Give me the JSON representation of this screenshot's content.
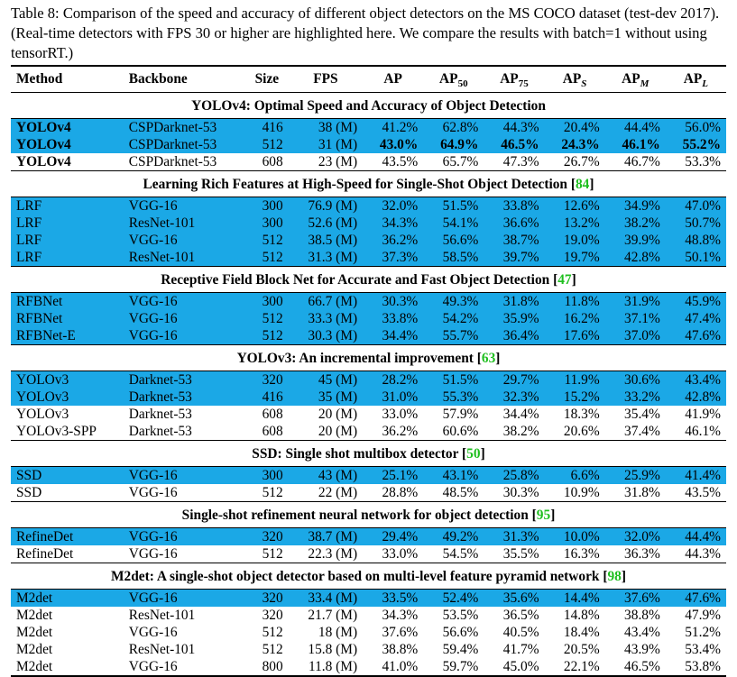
{
  "caption": "Table 8: Comparison of the speed and accuracy of different object detectors on the MS COCO dataset (test-dev 2017). (Real-time detectors with FPS 30 or higher are highlighted here. We compare the results with batch=1 without using tensorRT.)",
  "headers": {
    "method": "Method",
    "backbone": "Backbone",
    "size": "Size",
    "fps": "FPS",
    "ap": "AP",
    "ap50_base": "AP",
    "ap50_sub": "50",
    "ap75_base": "AP",
    "ap75_sub": "75",
    "aps_base": "AP",
    "aps_sub": "S",
    "apm_base": "AP",
    "apm_sub": "M",
    "apl_base": "AP",
    "apl_sub": "L"
  },
  "groups": [
    {
      "title": "YOLOv4: Optimal Speed and Accuracy of Object Detection",
      "ref": "",
      "rows": [
        {
          "method": "YOLOv4",
          "backbone": "CSPDarknet-53",
          "size": "416",
          "fps": "38 (M)",
          "ap": "41.2%",
          "ap50": "62.8%",
          "ap75": "44.3%",
          "aps": "20.4%",
          "apm": "44.4%",
          "apl": "56.0%",
          "hl": true,
          "bold_method": true,
          "bold": []
        },
        {
          "method": "YOLOv4",
          "backbone": "CSPDarknet-53",
          "size": "512",
          "fps": "31 (M)",
          "ap": "43.0%",
          "ap50": "64.9%",
          "ap75": "46.5%",
          "aps": "24.3%",
          "apm": "46.1%",
          "apl": "55.2%",
          "hl": true,
          "bold_method": true,
          "bold": [
            "ap",
            "ap50",
            "ap75",
            "aps",
            "apm",
            "apl"
          ]
        },
        {
          "method": "YOLOv4",
          "backbone": "CSPDarknet-53",
          "size": "608",
          "fps": "23 (M)",
          "ap": "43.5%",
          "ap50": "65.7%",
          "ap75": "47.3%",
          "aps": "26.7%",
          "apm": "46.7%",
          "apl": "53.3%",
          "hl": false,
          "bold_method": true,
          "bold": []
        }
      ]
    },
    {
      "title": "Learning Rich Features at High-Speed for Single-Shot Object Detection",
      "ref": "84",
      "rows": [
        {
          "method": "LRF",
          "backbone": "VGG-16",
          "size": "300",
          "fps": "76.9 (M)",
          "ap": "32.0%",
          "ap50": "51.5%",
          "ap75": "33.8%",
          "aps": "12.6%",
          "apm": "34.9%",
          "apl": "47.0%",
          "hl": true,
          "bold_method": false,
          "bold": []
        },
        {
          "method": "LRF",
          "backbone": "ResNet-101",
          "size": "300",
          "fps": "52.6 (M)",
          "ap": "34.3%",
          "ap50": "54.1%",
          "ap75": "36.6%",
          "aps": "13.2%",
          "apm": "38.2%",
          "apl": "50.7%",
          "hl": true,
          "bold_method": false,
          "bold": []
        },
        {
          "method": "LRF",
          "backbone": "VGG-16",
          "size": "512",
          "fps": "38.5 (M)",
          "ap": "36.2%",
          "ap50": "56.6%",
          "ap75": "38.7%",
          "aps": "19.0%",
          "apm": "39.9%",
          "apl": "48.8%",
          "hl": true,
          "bold_method": false,
          "bold": []
        },
        {
          "method": "LRF",
          "backbone": "ResNet-101",
          "size": "512",
          "fps": "31.3 (M)",
          "ap": "37.3%",
          "ap50": "58.5%",
          "ap75": "39.7%",
          "aps": "19.7%",
          "apm": "42.8%",
          "apl": "50.1%",
          "hl": true,
          "bold_method": false,
          "bold": []
        }
      ]
    },
    {
      "title": "Receptive Field Block Net for Accurate and Fast Object Detection",
      "ref": "47",
      "rows": [
        {
          "method": "RFBNet",
          "backbone": "VGG-16",
          "size": "300",
          "fps": "66.7 (M)",
          "ap": "30.3%",
          "ap50": "49.3%",
          "ap75": "31.8%",
          "aps": "11.8%",
          "apm": "31.9%",
          "apl": "45.9%",
          "hl": true,
          "bold_method": false,
          "bold": []
        },
        {
          "method": "RFBNet",
          "backbone": "VGG-16",
          "size": "512",
          "fps": "33.3 (M)",
          "ap": "33.8%",
          "ap50": "54.2%",
          "ap75": "35.9%",
          "aps": "16.2%",
          "apm": "37.1%",
          "apl": "47.4%",
          "hl": true,
          "bold_method": false,
          "bold": []
        },
        {
          "method": "RFBNet-E",
          "backbone": "VGG-16",
          "size": "512",
          "fps": "30.3 (M)",
          "ap": "34.4%",
          "ap50": "55.7%",
          "ap75": "36.4%",
          "aps": "17.6%",
          "apm": "37.0%",
          "apl": "47.6%",
          "hl": true,
          "bold_method": false,
          "bold": []
        }
      ]
    },
    {
      "title": "YOLOv3: An incremental improvement",
      "ref": "63",
      "rows": [
        {
          "method": "YOLOv3",
          "backbone": "Darknet-53",
          "size": "320",
          "fps": "45 (M)",
          "ap": "28.2%",
          "ap50": "51.5%",
          "ap75": "29.7%",
          "aps": "11.9%",
          "apm": "30.6%",
          "apl": "43.4%",
          "hl": true,
          "bold_method": false,
          "bold": []
        },
        {
          "method": "YOLOv3",
          "backbone": "Darknet-53",
          "size": "416",
          "fps": "35 (M)",
          "ap": "31.0%",
          "ap50": "55.3%",
          "ap75": "32.3%",
          "aps": "15.2%",
          "apm": "33.2%",
          "apl": "42.8%",
          "hl": true,
          "bold_method": false,
          "bold": []
        },
        {
          "method": "YOLOv3",
          "backbone": "Darknet-53",
          "size": "608",
          "fps": "20 (M)",
          "ap": "33.0%",
          "ap50": "57.9%",
          "ap75": "34.4%",
          "aps": "18.3%",
          "apm": "35.4%",
          "apl": "41.9%",
          "hl": false,
          "bold_method": false,
          "bold": []
        },
        {
          "method": "YOLOv3-SPP",
          "backbone": "Darknet-53",
          "size": "608",
          "fps": "20 (M)",
          "ap": "36.2%",
          "ap50": "60.6%",
          "ap75": "38.2%",
          "aps": "20.6%",
          "apm": "37.4%",
          "apl": "46.1%",
          "hl": false,
          "bold_method": false,
          "bold": []
        }
      ]
    },
    {
      "title": "SSD: Single shot multibox detector",
      "ref": "50",
      "rows": [
        {
          "method": "SSD",
          "backbone": "VGG-16",
          "size": "300",
          "fps": "43 (M)",
          "ap": "25.1%",
          "ap50": "43.1%",
          "ap75": "25.8%",
          "aps": "6.6%",
          "apm": "25.9%",
          "apl": "41.4%",
          "hl": true,
          "bold_method": false,
          "bold": []
        },
        {
          "method": "SSD",
          "backbone": "VGG-16",
          "size": "512",
          "fps": "22 (M)",
          "ap": "28.8%",
          "ap50": "48.5%",
          "ap75": "30.3%",
          "aps": "10.9%",
          "apm": "31.8%",
          "apl": "43.5%",
          "hl": false,
          "bold_method": false,
          "bold": []
        }
      ]
    },
    {
      "title": "Single-shot refinement neural network for object detection",
      "ref": "95",
      "rows": [
        {
          "method": "RefineDet",
          "backbone": "VGG-16",
          "size": "320",
          "fps": "38.7 (M)",
          "ap": "29.4%",
          "ap50": "49.2%",
          "ap75": "31.3%",
          "aps": "10.0%",
          "apm": "32.0%",
          "apl": "44.4%",
          "hl": true,
          "bold_method": false,
          "bold": []
        },
        {
          "method": "RefineDet",
          "backbone": "VGG-16",
          "size": "512",
          "fps": "22.3 (M)",
          "ap": "33.0%",
          "ap50": "54.5%",
          "ap75": "35.5%",
          "aps": "16.3%",
          "apm": "36.3%",
          "apl": "44.3%",
          "hl": false,
          "bold_method": false,
          "bold": []
        }
      ]
    },
    {
      "title": "M2det: A single-shot object detector based on multi-level feature pyramid network",
      "ref": "98",
      "rows": [
        {
          "method": "M2det",
          "backbone": "VGG-16",
          "size": "320",
          "fps": "33.4 (M)",
          "ap": "33.5%",
          "ap50": "52.4%",
          "ap75": "35.6%",
          "aps": "14.4%",
          "apm": "37.6%",
          "apl": "47.6%",
          "hl": true,
          "bold_method": false,
          "bold": []
        },
        {
          "method": "M2det",
          "backbone": "ResNet-101",
          "size": "320",
          "fps": "21.7 (M)",
          "ap": "34.3%",
          "ap50": "53.5%",
          "ap75": "36.5%",
          "aps": "14.8%",
          "apm": "38.8%",
          "apl": "47.9%",
          "hl": false,
          "bold_method": false,
          "bold": []
        },
        {
          "method": "M2det",
          "backbone": "VGG-16",
          "size": "512",
          "fps": "18 (M)",
          "ap": "37.6%",
          "ap50": "56.6%",
          "ap75": "40.5%",
          "aps": "18.4%",
          "apm": "43.4%",
          "apl": "51.2%",
          "hl": false,
          "bold_method": false,
          "bold": []
        },
        {
          "method": "M2det",
          "backbone": "ResNet-101",
          "size": "512",
          "fps": "15.8 (M)",
          "ap": "38.8%",
          "ap50": "59.4%",
          "ap75": "41.7%",
          "aps": "20.5%",
          "apm": "43.9%",
          "apl": "53.4%",
          "hl": false,
          "bold_method": false,
          "bold": []
        },
        {
          "method": "M2det",
          "backbone": "VGG-16",
          "size": "800",
          "fps": "11.8 (M)",
          "ap": "41.0%",
          "ap50": "59.7%",
          "ap75": "45.0%",
          "aps": "22.1%",
          "apm": "46.5%",
          "apl": "53.8%",
          "hl": false,
          "bold_method": false,
          "bold": []
        }
      ]
    }
  ]
}
